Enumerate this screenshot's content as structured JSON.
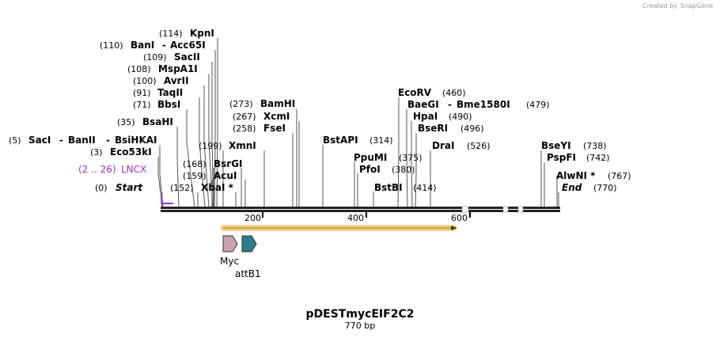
{
  "credit": {
    "text": "Created by",
    "brand": "SnapGene"
  },
  "plasmid": {
    "name": "pDESTmycEIF2C2",
    "length_label": "770 bp",
    "length": 770
  },
  "scale_ticks": [
    "200",
    "400",
    "600"
  ],
  "sites": [
    {
      "name": "KpnI",
      "pos": "(114)"
    },
    {
      "name": "BanI",
      "name2": "Acc65I",
      "pos": "(110)"
    },
    {
      "name": "SacII",
      "pos": "(109)"
    },
    {
      "name": "MspA1I",
      "pos": "(108)"
    },
    {
      "name": "AvrII",
      "pos": "(100)"
    },
    {
      "name": "TaqII",
      "pos": "(91)"
    },
    {
      "name": "BbsI",
      "pos": "(71)"
    },
    {
      "name": "BsaHI",
      "pos": "(35)"
    },
    {
      "name": "SacI",
      "name2": "BanII",
      "name3": "BsiHKAI",
      "pos": "(5)"
    },
    {
      "name": "Eco53kI",
      "pos": "(3)"
    },
    {
      "name": "XmnI",
      "pos": "(199)"
    },
    {
      "name": "BsrGI",
      "pos": "(168)"
    },
    {
      "name": "AcuI",
      "pos": "(159)"
    },
    {
      "name": "XbaI *",
      "pos": "(152)"
    },
    {
      "name": "BamHI",
      "pos": "(273)"
    },
    {
      "name": "XcmI",
      "pos": "(267)"
    },
    {
      "name": "FseI",
      "pos": "(258)"
    },
    {
      "name": "BstAPI",
      "pos": "(314)"
    },
    {
      "name": "PpuMI",
      "pos": "(375)"
    },
    {
      "name": "PfoI",
      "pos": "(380)"
    },
    {
      "name": "BstBI",
      "pos": "(414)"
    },
    {
      "name": "EcoRV",
      "pos": "(460)"
    },
    {
      "name": "BaeGI",
      "name2": "Bme1580I",
      "pos": "(479)"
    },
    {
      "name": "HpaI",
      "pos": "(490)"
    },
    {
      "name": "BseRI",
      "pos": "(496)"
    },
    {
      "name": "DraI",
      "pos": "(526)"
    },
    {
      "name": "BseYI",
      "pos": "(738)"
    },
    {
      "name": "PspFI",
      "pos": "(742)"
    },
    {
      "name": "AlwNI *",
      "pos": "(767)"
    }
  ],
  "markers": {
    "start": {
      "label": "Start",
      "pos": "(0)"
    },
    "end": {
      "label": "End",
      "pos": "(770)"
    }
  },
  "features": {
    "lncx": {
      "label": "LNCX",
      "range": "(2 .. 26)",
      "color": "#9b30d9"
    },
    "myc": {
      "label": "Myc",
      "color": "#c9a0b4"
    },
    "attb1": {
      "label": "attB1",
      "color": "#2e7d8c"
    },
    "orf": {
      "color": "#f2c55c"
    }
  }
}
